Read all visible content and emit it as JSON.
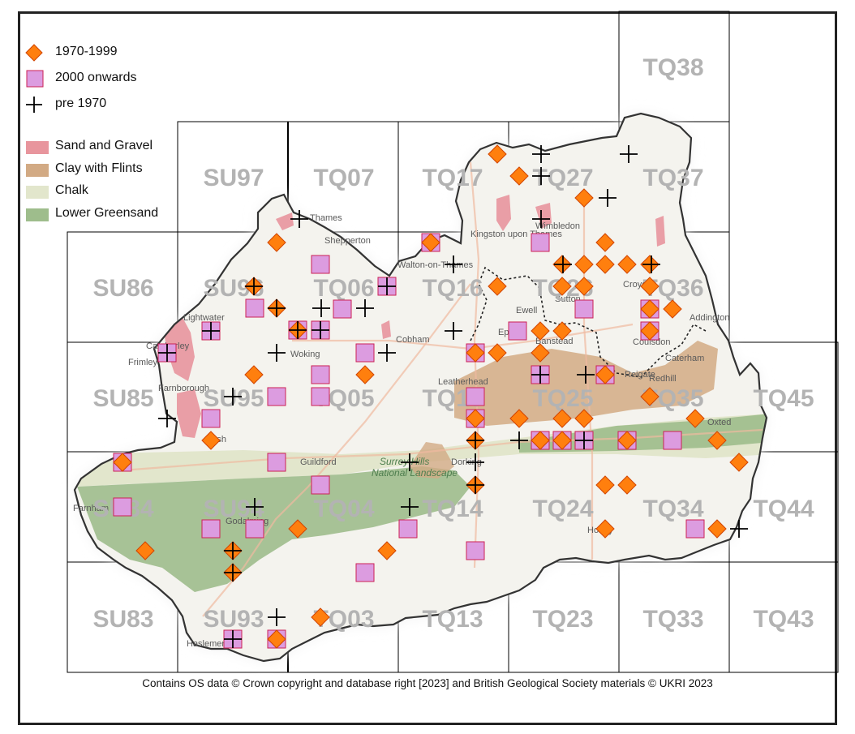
{
  "legend": {
    "items": [
      {
        "label": "1970-1999",
        "symbol": "diamond",
        "color": "#ff7f0e"
      },
      {
        "label": "2000 onwards",
        "symbol": "square",
        "color": "#dc9ce0"
      },
      {
        "label": "pre 1970",
        "symbol": "cross",
        "color": "#000000"
      },
      {
        "label": "Sand and Gravel",
        "symbol": "swatch",
        "color": "#e8959d"
      },
      {
        "label": "Clay with Flints",
        "symbol": "swatch",
        "color": "#d2aa84"
      },
      {
        "label": "Chalk",
        "symbol": "swatch",
        "color": "#e2e6cc"
      },
      {
        "label": "Lower Greensand",
        "symbol": "swatch",
        "color": "#9ebd8c"
      }
    ]
  },
  "grid_tiles": [
    "TQ38",
    "SU97",
    "TQ07",
    "TQ17",
    "TQ27",
    "TQ37",
    "SU86",
    "SU96",
    "TQ06",
    "TQ16",
    "TQ26",
    "TQ36",
    "SU85",
    "SU95",
    "TQ05",
    "TQ15",
    "TQ25",
    "TQ35",
    "TQ45",
    "SU84",
    "SU94",
    "TQ04",
    "TQ14",
    "TQ24",
    "TQ34",
    "TQ44",
    "SU83",
    "SU93",
    "TQ03",
    "TQ13",
    "TQ23",
    "TQ33",
    "TQ43"
  ],
  "place_labels": [
    "Lightwater",
    "Woking",
    "Cobham",
    "Leatherhead",
    "Ewell",
    "Epsom",
    "Banstead",
    "Sutton",
    "Croydon",
    "Wimbledon",
    "Kingston upon Thames",
    "Walton-on-Thames",
    "Guildford",
    "Godalming",
    "Farnham",
    "Dorking",
    "Haslemere",
    "Horley",
    "Oxted",
    "Caterham",
    "Reigate",
    "Redhill",
    "Camberley",
    "Frimley",
    "Farnborough",
    "Ash",
    "Shepperton",
    "Addington",
    "Coulsdon",
    "Thames",
    "Surrey Hills National Landscape"
  ],
  "credit": "Contains OS data  © Crown copyright and database right [2023] and British Geological Society materials © UKRI 2023",
  "colors": {
    "diamond_fill": "#ff7f0e",
    "square_fill": "#dc9ce0",
    "square_stroke": "#cc2255",
    "cross": "#000000",
    "boundary": "#333333"
  }
}
